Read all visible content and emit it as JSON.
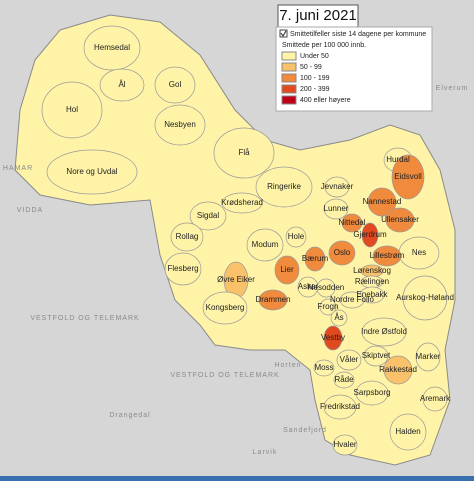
{
  "title": "7. juni 2021",
  "layer_label": "Smittetilfeller siste 14 dagene per kommune",
  "legend": {
    "title": "Smittede per 100 000 innb.",
    "items": [
      {
        "label": "Under 50",
        "color": "#fff3a8"
      },
      {
        "label": "50 - 99",
        "color": "#f9c26a"
      },
      {
        "label": "100 - 199",
        "color": "#f08a3c"
      },
      {
        "label": "200 - 399",
        "color": "#e04a1e"
      },
      {
        "label": "400 eller høyere",
        "color": "#c0001a"
      }
    ]
  },
  "municipalities": [
    {
      "name": "Hemsedal",
      "class": 0
    },
    {
      "name": "Ål",
      "class": 0
    },
    {
      "name": "Gol",
      "class": 0
    },
    {
      "name": "Hol",
      "class": 0
    },
    {
      "name": "Nesbyen",
      "class": 0
    },
    {
      "name": "Nore og Uvdal",
      "class": 0
    },
    {
      "name": "Flå",
      "class": 0
    },
    {
      "name": "Hurdal",
      "class": 0
    },
    {
      "name": "Eidsvoll",
      "class": 2
    },
    {
      "name": "Ringerike",
      "class": 0
    },
    {
      "name": "Jevnaker",
      "class": 0
    },
    {
      "name": "Lunner",
      "class": 0
    },
    {
      "name": "Nannestad",
      "class": 2
    },
    {
      "name": "Krødsherad",
      "class": 0
    },
    {
      "name": "Sigdal",
      "class": 0
    },
    {
      "name": "Nittedal",
      "class": 2
    },
    {
      "name": "Ullensaker",
      "class": 2
    },
    {
      "name": "Gjerdrum",
      "class": 3
    },
    {
      "name": "Nes",
      "class": 0
    },
    {
      "name": "Rollag",
      "class": 0
    },
    {
      "name": "Modum",
      "class": 0
    },
    {
      "name": "Hole",
      "class": 0
    },
    {
      "name": "Oslo",
      "class": 2
    },
    {
      "name": "Lillestrøm",
      "class": 2
    },
    {
      "name": "Bærum",
      "class": 2
    },
    {
      "name": "Lier",
      "class": 2
    },
    {
      "name": "Lørenskog",
      "class": 1
    },
    {
      "name": "Rælingen",
      "class": 0
    },
    {
      "name": "Flesberg",
      "class": 0
    },
    {
      "name": "Øvre Eiker",
      "class": 1
    },
    {
      "name": "Asker",
      "class": 0
    },
    {
      "name": "Nesodden",
      "class": 0
    },
    {
      "name": "Enebakk",
      "class": 0
    },
    {
      "name": "Drammen",
      "class": 2
    },
    {
      "name": "Aurskog-Høland",
      "class": 0
    },
    {
      "name": "Frogn",
      "class": 0
    },
    {
      "name": "Nordre Follo",
      "class": 0
    },
    {
      "name": "Kongsberg",
      "class": 0
    },
    {
      "name": "Ås",
      "class": 0
    },
    {
      "name": "Vestby",
      "class": 3
    },
    {
      "name": "Indre Østfold",
      "class": 0
    },
    {
      "name": "Våler",
      "class": 0
    },
    {
      "name": "Skiptvet",
      "class": 0
    },
    {
      "name": "Marker",
      "class": 0
    },
    {
      "name": "Moss",
      "class": 0
    },
    {
      "name": "Råde",
      "class": 0
    },
    {
      "name": "Rakkestad",
      "class": 1
    },
    {
      "name": "Aremark",
      "class": 0
    },
    {
      "name": "Sarpsborg",
      "class": 0
    },
    {
      "name": "Fredrikstad",
      "class": 0
    },
    {
      "name": "Halden",
      "class": 0
    },
    {
      "name": "Hvaler",
      "class": 0
    }
  ],
  "background_labels": [
    "HAMAR",
    "VIDDA",
    "VESTFOLD OG TELEMARK",
    "VESTFOLD OG TELEMARK",
    "Elverum",
    "Horten",
    "Larvik",
    "Drangedal",
    "Sandefjord"
  ]
}
